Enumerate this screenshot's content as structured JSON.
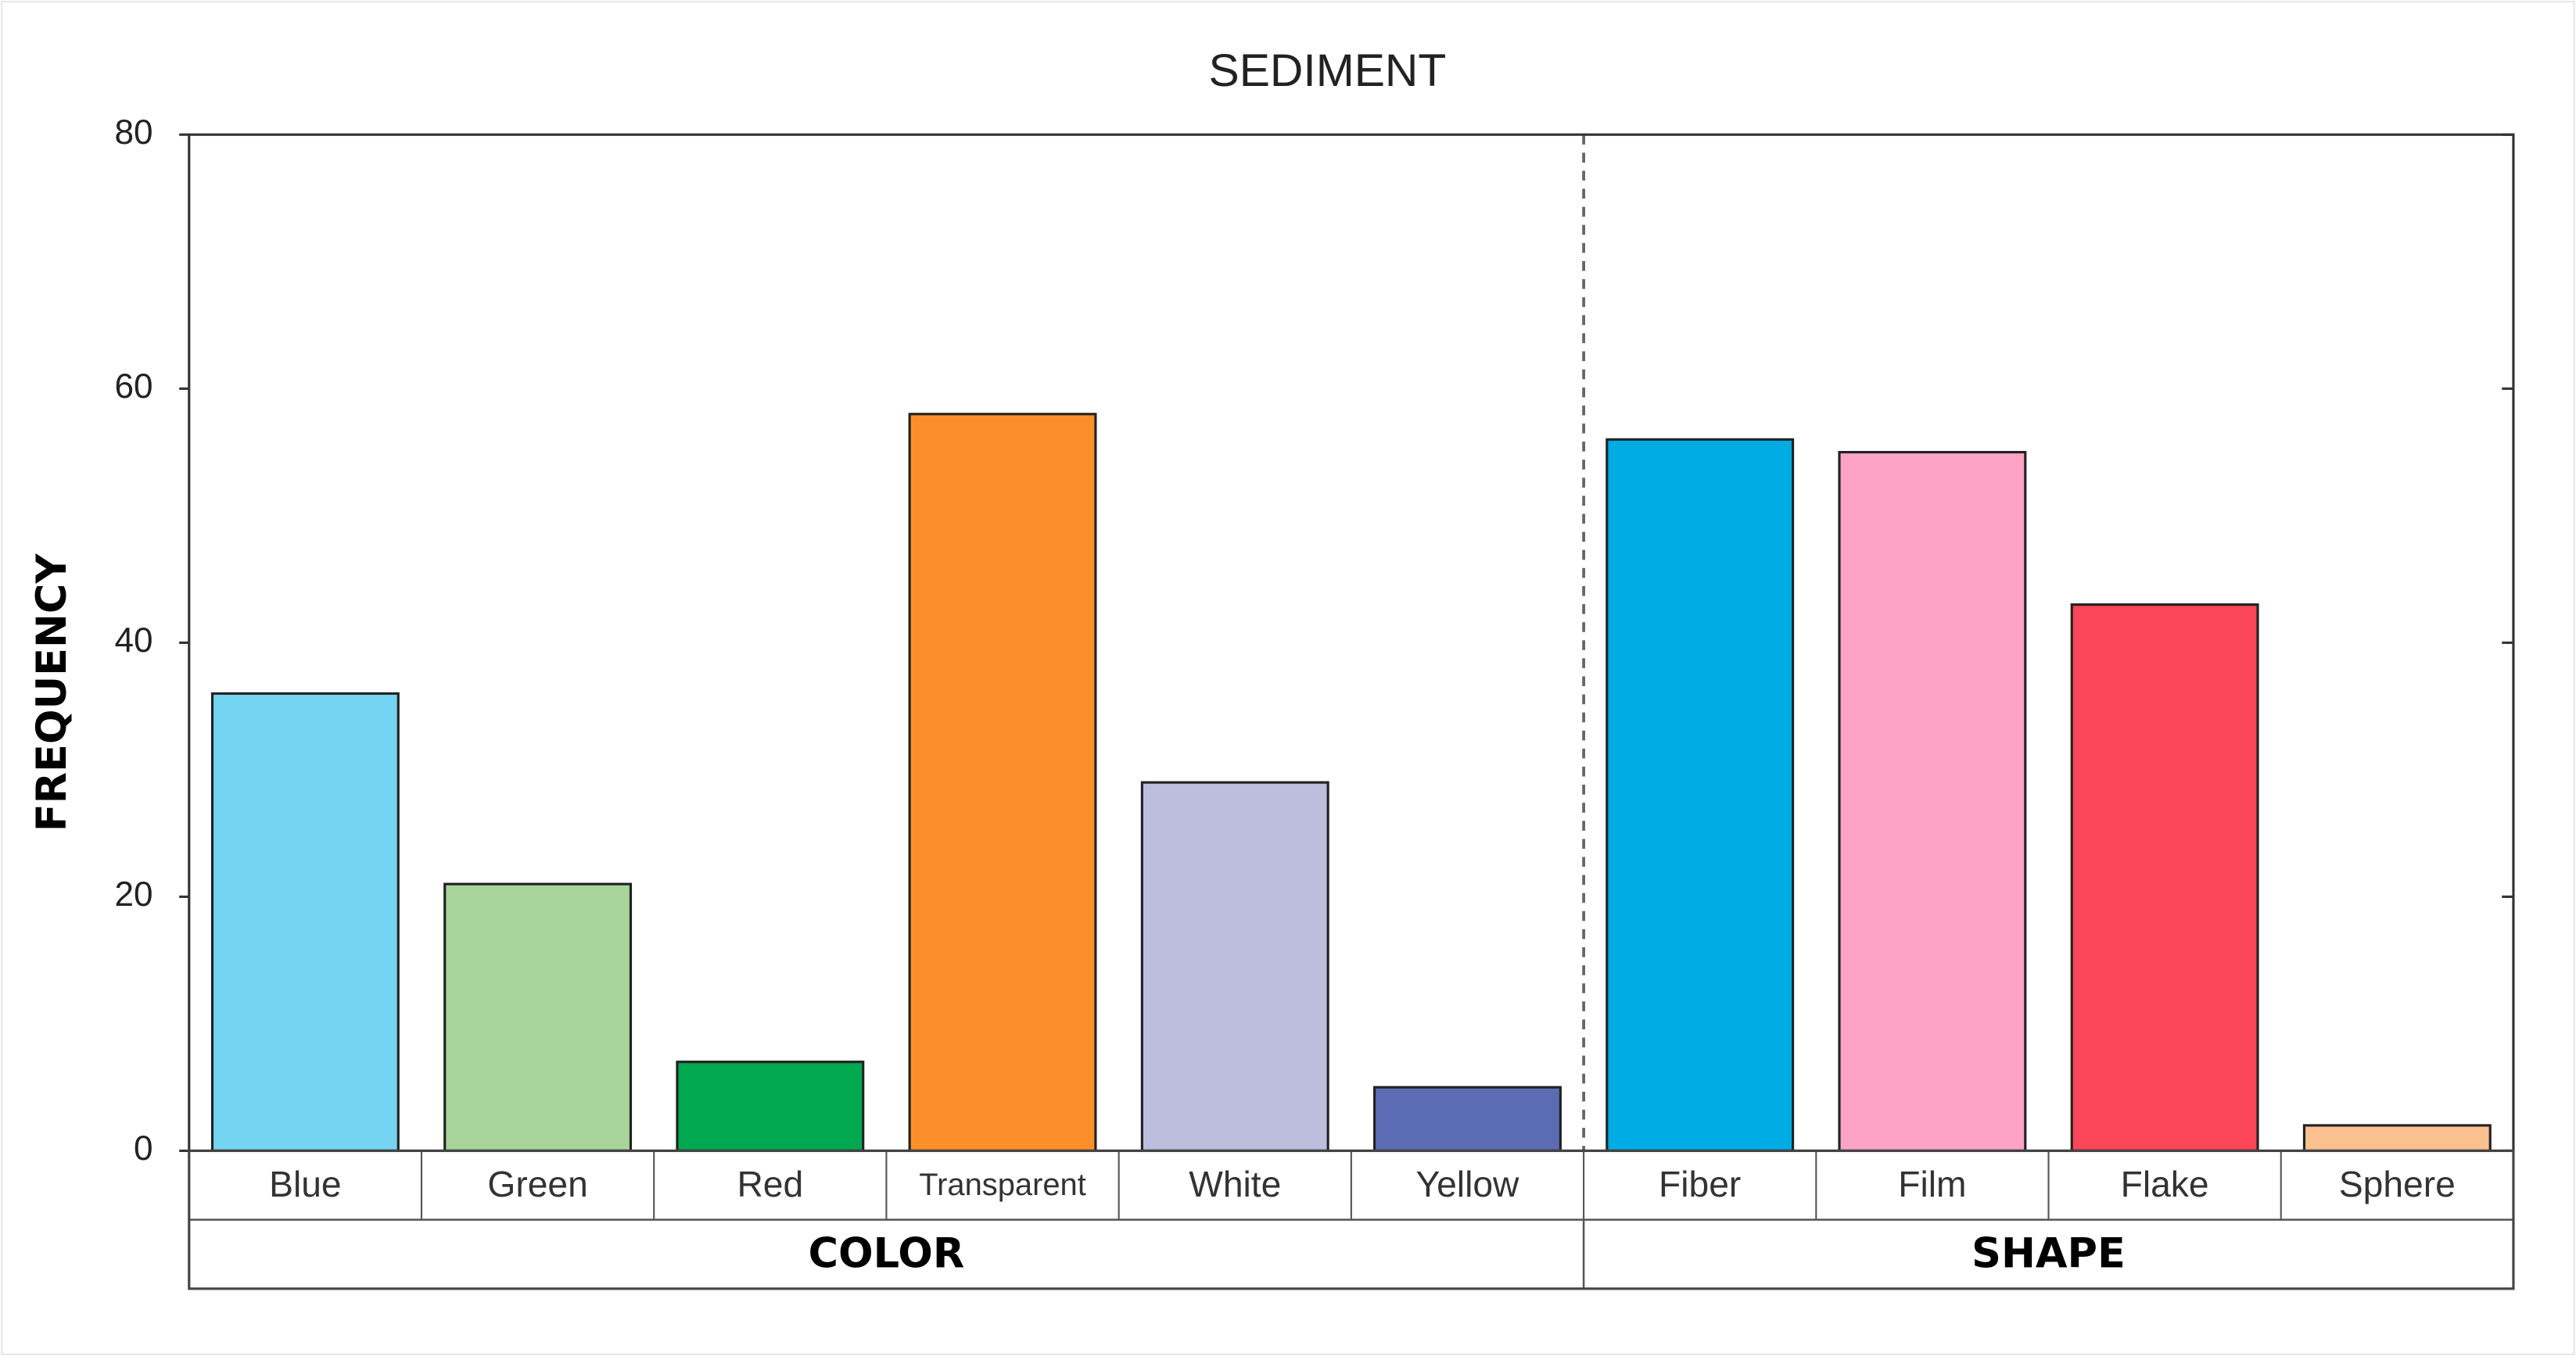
{
  "chart_data": {
    "type": "bar",
    "title": "SEDIMENT",
    "y_label": "FREQUENCY",
    "groups": [
      {
        "label": "COLOR",
        "categories": [
          "Blue",
          "Green",
          "Red",
          "Transparent",
          "White",
          "Yellow"
        ],
        "values": [
          36,
          21,
          7,
          58,
          29,
          5
        ],
        "colors": [
          "#72d4f0",
          "#a6d49a",
          "#00a94f",
          "#fd8f2a",
          "#bdbedd",
          "#5b6cb5"
        ]
      },
      {
        "label": "SHAPE",
        "categories": [
          "Fiber",
          "Film",
          "Flake",
          "Sphere"
        ],
        "values": [
          56,
          55,
          43,
          2
        ],
        "colors": [
          "#00ace4",
          "#fda4c4",
          "#fb4558",
          "#fbc08f"
        ]
      }
    ],
    "ylim": [
      0,
      80
    ],
    "yticks": [
      0,
      20,
      40,
      60,
      80
    ]
  }
}
